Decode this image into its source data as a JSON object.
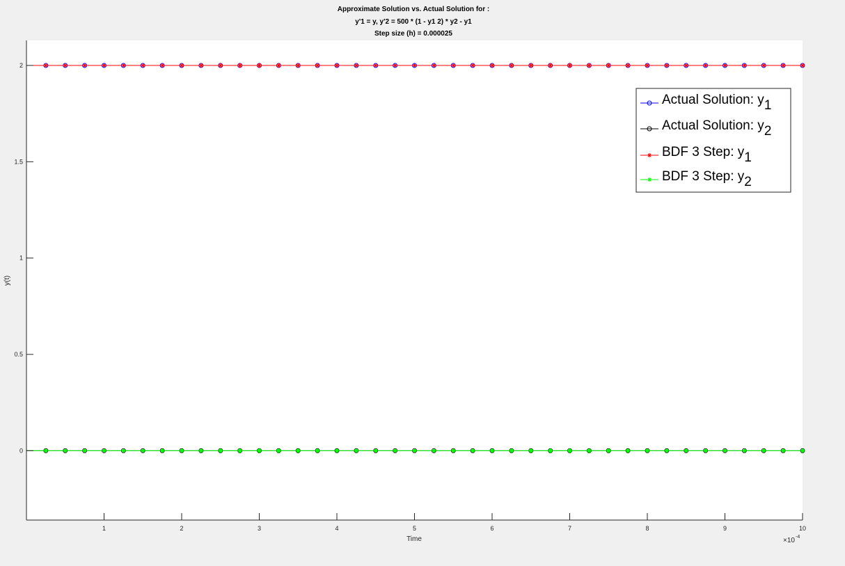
{
  "window": {
    "background": "#f0f0f0"
  },
  "chart_data": {
    "type": "line",
    "title_lines": [
      "Approximate Solution vs. Actual Solution for :",
      "y'1 = y, y'2 = 500 * (1 - y1  2) * y2 - y1",
      "Step size (h) = 0.000025"
    ],
    "xlabel": "Time",
    "ylabel": "y(t)",
    "x_exponent_label": "×10",
    "x_exponent_power": "-4",
    "x_scale": 0.0001,
    "xlim": [
      0,
      10
    ],
    "ylim": [
      -0.36,
      2.13
    ],
    "x_ticks": [
      1,
      2,
      3,
      4,
      5,
      6,
      7,
      8,
      9,
      10
    ],
    "x_tick_labels": [
      "1",
      "2",
      "3",
      "4",
      "5",
      "6",
      "7",
      "8",
      "9",
      "10"
    ],
    "y_ticks": [
      0,
      0.5,
      1,
      1.5,
      2
    ],
    "y_tick_labels": [
      "0",
      "0.5",
      "1",
      "1.5",
      "2"
    ],
    "grid": false,
    "legend_position": "top-right",
    "x_values": [
      0.25,
      0.5,
      0.75,
      1,
      1.25,
      1.5,
      1.75,
      2,
      2.25,
      2.5,
      2.75,
      3,
      3.25,
      3.5,
      3.75,
      4,
      4.25,
      4.5,
      4.75,
      5,
      5.25,
      5.5,
      5.75,
      6,
      6.25,
      6.5,
      6.75,
      7,
      7.25,
      7.5,
      7.75,
      8,
      8.25,
      8.5,
      8.75,
      9,
      9.25,
      9.5,
      9.75,
      10
    ],
    "series": [
      {
        "name": "Actual Solution: y",
        "subscript": "1",
        "color": "#0000ff",
        "marker": "circle",
        "constant_value": 2.0
      },
      {
        "name": "Actual Solution: y",
        "subscript": "2",
        "color": "#000000",
        "marker": "circle",
        "constant_value": 0.0
      },
      {
        "name": "BDF 3 Step: y",
        "subscript": "1",
        "color": "#ff0000",
        "marker": "asterisk",
        "constant_value": 2.0
      },
      {
        "name": "BDF 3 Step: y",
        "subscript": "2",
        "color": "#00ff00",
        "marker": "asterisk",
        "constant_value": 0.0
      }
    ]
  }
}
